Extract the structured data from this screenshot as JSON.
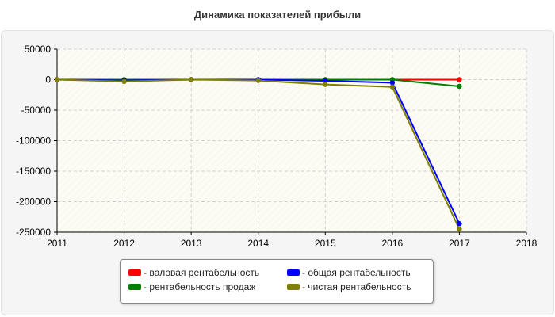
{
  "chart_data": {
    "type": "line",
    "title": "Динамика показателей прибыли",
    "xlabel": "",
    "ylabel": "",
    "xlim": [
      2011,
      2018
    ],
    "ylim": [
      -250000,
      50000
    ],
    "x_ticks": [
      "2011",
      "2012",
      "2013",
      "2014",
      "2015",
      "2016",
      "2017",
      "2018"
    ],
    "y_ticks": [
      "50000",
      "0",
      "-50000",
      "-100000",
      "-150000",
      "-200000",
      "-250000"
    ],
    "grid": true,
    "legend_position": "bottom",
    "series": [
      {
        "name": "- валовая рентабельность",
        "color": "#ff0000",
        "x": [
          2011,
          2012,
          2013,
          2014,
          2015,
          2016,
          2017
        ],
        "values": [
          0,
          0,
          0,
          0,
          0,
          0,
          0
        ]
      },
      {
        "name": "- рентабельность продаж",
        "color": "#008000",
        "x": [
          2011,
          2012,
          2013,
          2014,
          2015,
          2016,
          2017
        ],
        "values": [
          0,
          0,
          0,
          0,
          0,
          0,
          -11000
        ]
      },
      {
        "name": "- общая рентабельность",
        "color": "#0000ff",
        "x": [
          2011,
          2012,
          2013,
          2014,
          2015,
          2016,
          2017
        ],
        "values": [
          0,
          -1500,
          0,
          0,
          -2000,
          -5000,
          -236000
        ]
      },
      {
        "name": "- чистая рентабельность",
        "color": "#808000",
        "x": [
          2011,
          2012,
          2013,
          2014,
          2015,
          2016,
          2017
        ],
        "values": [
          0,
          -3000,
          0,
          -1500,
          -8000,
          -12000,
          -245000
        ]
      }
    ]
  }
}
